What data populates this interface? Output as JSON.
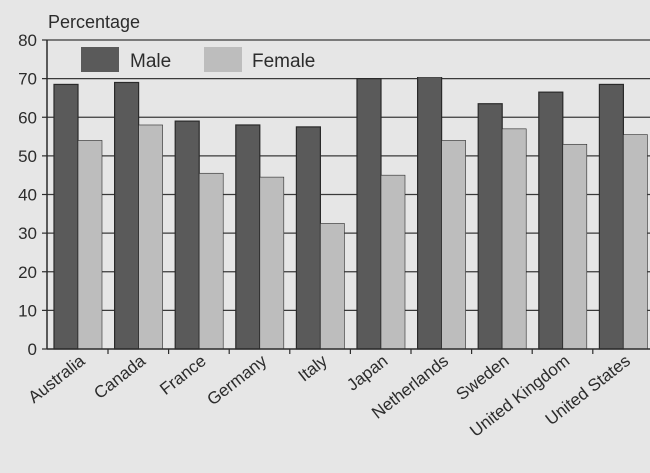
{
  "chart_data": {
    "type": "bar",
    "ylabel": "Percentage",
    "xlabel": "",
    "ylim": [
      0,
      80
    ],
    "yticks": [
      0,
      10,
      20,
      30,
      40,
      50,
      60,
      70,
      80
    ],
    "grid": true,
    "legend_position": "top-left",
    "categories": [
      "Australia",
      "Canada",
      "France",
      "Germany",
      "Italy",
      "Japan",
      "Netherlands",
      "Sweden",
      "United Kingdom",
      "United States"
    ],
    "series": [
      {
        "name": "Male",
        "color": "#5a5a5a",
        "values": [
          68.5,
          69,
          59,
          58,
          57.5,
          70,
          70.5,
          63.5,
          66.5,
          68.5
        ]
      },
      {
        "name": "Female",
        "color": "#bdbdbd",
        "values": [
          54,
          58,
          45.5,
          44.5,
          32.5,
          45,
          54,
          57,
          53,
          55.5
        ]
      }
    ]
  }
}
